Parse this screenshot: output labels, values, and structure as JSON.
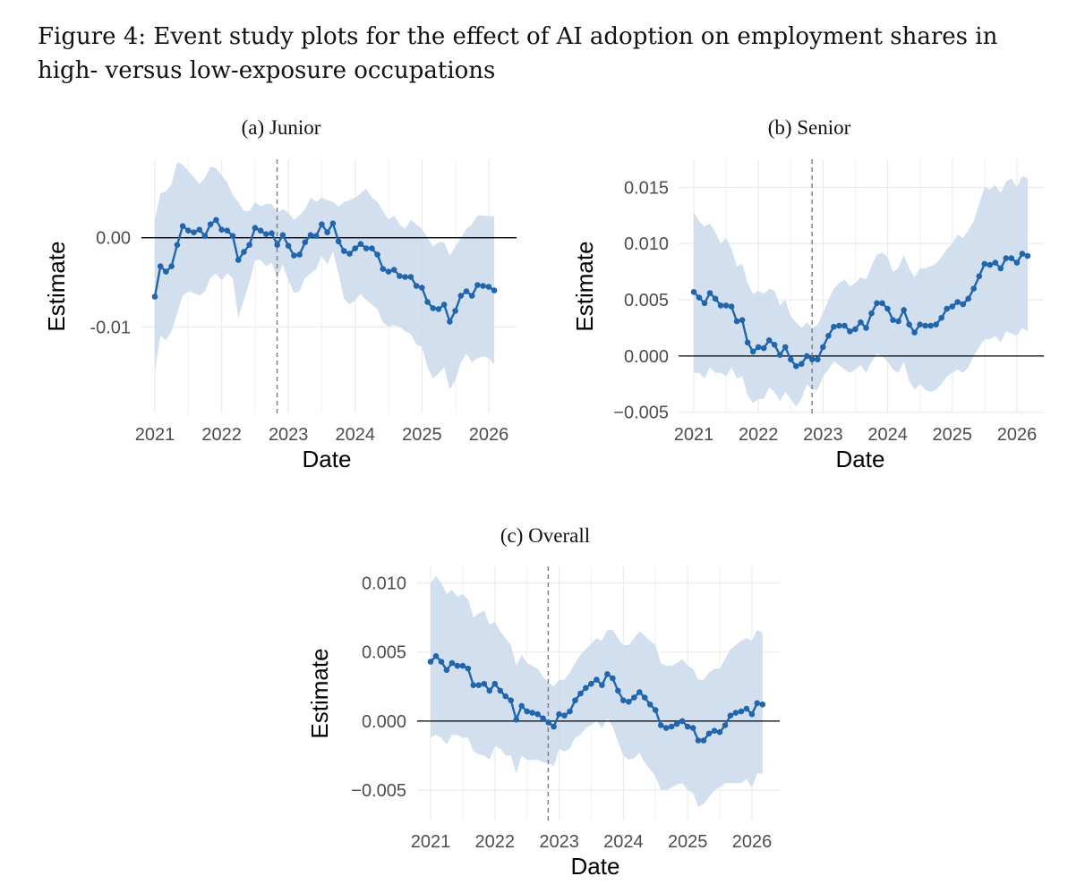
{
  "caption": "Figure 4: Event study plots for the effect of AI adoption on employment shares in high- versus low-exposure occupations",
  "colors": {
    "line": "#2166ac",
    "band": "#c9d9ec",
    "reference_line": "#808080"
  },
  "chart_data": [
    {
      "id": "junior",
      "type": "line",
      "title": "(a) Junior",
      "xlabel": "Date",
      "ylabel": "Estimate",
      "xlim": [
        2021.0,
        2026.4
      ],
      "ylim": [
        -0.0197,
        0.0088
      ],
      "xticks": [
        2021,
        2022,
        2023,
        2024,
        2025,
        2026
      ],
      "xtick_labels": [
        "2021",
        "2022",
        "2023",
        "2024",
        "2025",
        "2026"
      ],
      "yticks": [
        0.0,
        -0.01
      ],
      "ytick_labels": [
        "0.00",
        "-0.01"
      ],
      "reference_hline": 0,
      "event_date": 2022.83,
      "grid": true,
      "series": [
        {
          "x_start": 2021.0,
          "x_step": 0.0833,
          "estimate": [
            -0.0066,
            -0.0032,
            -0.0038,
            -0.0032,
            -0.0008,
            0.0013,
            0.0008,
            0.0006,
            0.0009,
            0.0002,
            0.0015,
            0.002,
            0.0009,
            0.0008,
            0.0002,
            -0.0025,
            -0.0016,
            -0.0008,
            0.0011,
            0.0008,
            0.0004,
            0.0005,
            -0.0008,
            0.0003,
            -0.0009,
            -0.002,
            -0.0019,
            -0.0005,
            0.0003,
            0.0002,
            0.0015,
            0.0006,
            0.0016,
            -0.0004,
            -0.0015,
            -0.0018,
            -0.0012,
            -0.0007,
            -0.0012,
            -0.0012,
            -0.0019,
            -0.0035,
            -0.0038,
            -0.0036,
            -0.0043,
            -0.0044,
            -0.0044,
            -0.0054,
            -0.0056,
            -0.0072,
            -0.0079,
            -0.008,
            -0.0075,
            -0.0094,
            -0.0082,
            -0.0065,
            -0.006,
            -0.0065,
            -0.0053,
            -0.0054,
            -0.0055,
            -0.0059
          ],
          "upper": [
            0.002,
            0.005,
            0.0052,
            0.006,
            0.0085,
            0.0082,
            0.0075,
            0.0068,
            0.006,
            0.0067,
            0.008,
            0.0078,
            0.007,
            0.0062,
            0.0048,
            0.004,
            0.003,
            0.003,
            0.004,
            0.0035,
            0.0038,
            0.0038,
            0.0028,
            0.0032,
            0.0028,
            0.002,
            0.0025,
            0.0032,
            0.0045,
            0.004,
            0.0045,
            0.0042,
            0.004,
            0.0035,
            0.004,
            0.0042,
            0.0045,
            0.005,
            0.0055,
            0.0045,
            0.004,
            0.003,
            0.002,
            0.0025,
            0.0015,
            0.001,
            0.002,
            0.0015,
            0.001,
            0.0,
            -0.001,
            -0.0005,
            -0.0005,
            -0.002,
            -0.001,
            0.0,
            0.001,
            0.0015,
            0.0025,
            0.0025,
            0.0024,
            0.0024
          ],
          "lower": [
            -0.015,
            -0.011,
            -0.0115,
            -0.0105,
            -0.0085,
            -0.0065,
            -0.006,
            -0.0062,
            -0.0065,
            -0.006,
            -0.0045,
            -0.004,
            -0.0048,
            -0.004,
            -0.0045,
            -0.009,
            -0.007,
            -0.005,
            -0.0025,
            -0.0025,
            -0.0032,
            -0.0028,
            -0.0045,
            -0.003,
            -0.0048,
            -0.0062,
            -0.006,
            -0.0045,
            -0.004,
            -0.0035,
            -0.002,
            -0.003,
            -0.0015,
            -0.004,
            -0.0068,
            -0.0075,
            -0.007,
            -0.0063,
            -0.007,
            -0.0075,
            -0.008,
            -0.0095,
            -0.01,
            -0.0098,
            -0.01,
            -0.0105,
            -0.0108,
            -0.012,
            -0.0122,
            -0.0145,
            -0.0158,
            -0.0152,
            -0.0145,
            -0.017,
            -0.016,
            -0.014,
            -0.013,
            -0.014,
            -0.0135,
            -0.0133,
            -0.0135,
            -0.0142
          ]
        }
      ]
    },
    {
      "id": "senior",
      "type": "line",
      "title": "(b) Senior",
      "xlabel": "Date",
      "ylabel": "Estimate",
      "xlim": [
        2021.0,
        2026.4
      ],
      "ylim": [
        -0.0051,
        0.0175
      ],
      "xticks": [
        2021,
        2022,
        2023,
        2024,
        2025,
        2026
      ],
      "xtick_labels": [
        "2021",
        "2022",
        "2023",
        "2024",
        "2025",
        "2026"
      ],
      "yticks": [
        0.015,
        0.01,
        0.005,
        0.0,
        -0.005
      ],
      "ytick_labels": [
        "0.015",
        "0.010",
        "0.005",
        "0.000",
        "−0.005"
      ],
      "reference_hline": 0,
      "event_date": 2022.83,
      "grid": true,
      "series": [
        {
          "x_start": 2021.0,
          "x_step": 0.0833,
          "estimate": [
            0.0057,
            0.0052,
            0.0047,
            0.0056,
            0.0051,
            0.0045,
            0.0045,
            0.0044,
            0.0031,
            0.0032,
            0.0012,
            0.0004,
            0.0008,
            0.0007,
            0.0014,
            0.001,
            0.0001,
            0.0008,
            -0.0003,
            -0.0009,
            -0.0007,
            0.0,
            -0.0003,
            -0.0003,
            0.0008,
            0.0018,
            0.0026,
            0.0027,
            0.0027,
            0.0022,
            0.0024,
            0.003,
            0.0025,
            0.0038,
            0.0047,
            0.0047,
            0.0042,
            0.0032,
            0.0031,
            0.0041,
            0.0028,
            0.0021,
            0.0028,
            0.0027,
            0.0027,
            0.0028,
            0.0034,
            0.0042,
            0.0044,
            0.0048,
            0.0046,
            0.0051,
            0.006,
            0.0071,
            0.0082,
            0.0081,
            0.0083,
            0.0078,
            0.0087,
            0.0087,
            0.0083,
            0.0091,
            0.0089
          ],
          "upper": [
            0.0128,
            0.012,
            0.0115,
            0.0118,
            0.011,
            0.01,
            0.0105,
            0.0095,
            0.008,
            0.0082,
            0.0065,
            0.0055,
            0.0058,
            0.0055,
            0.006,
            0.0058,
            0.0045,
            0.005,
            0.0035,
            0.003,
            0.0025,
            0.003,
            0.0025,
            0.0028,
            0.0038,
            0.005,
            0.006,
            0.0065,
            0.0068,
            0.0062,
            0.0065,
            0.007,
            0.0068,
            0.008,
            0.009,
            0.0092,
            0.0088,
            0.0075,
            0.0078,
            0.009,
            0.0078,
            0.007,
            0.0078,
            0.0078,
            0.008,
            0.0082,
            0.0088,
            0.0095,
            0.01,
            0.0108,
            0.0105,
            0.0112,
            0.012,
            0.0135,
            0.015,
            0.0148,
            0.0152,
            0.0145,
            0.0155,
            0.0158,
            0.015,
            0.016,
            0.0158
          ],
          "lower": [
            -0.0015,
            -0.0015,
            -0.002,
            -0.001,
            -0.0015,
            -0.0015,
            -0.0018,
            -0.001,
            -0.002,
            -0.0018,
            -0.0035,
            -0.0042,
            -0.0038,
            -0.0038,
            -0.0028,
            -0.0032,
            -0.004,
            -0.0032,
            -0.0038,
            -0.0045,
            -0.0038,
            -0.0025,
            -0.003,
            -0.003,
            -0.0018,
            -0.0012,
            -0.0005,
            -0.0008,
            -0.0012,
            -0.0015,
            -0.0012,
            -0.0008,
            -0.0015,
            -0.0005,
            0.0002,
            0.0,
            -0.0005,
            -0.0012,
            -0.0015,
            -0.0005,
            -0.0022,
            -0.003,
            -0.0025,
            -0.003,
            -0.0032,
            -0.003,
            -0.0025,
            -0.0018,
            -0.0015,
            -0.0012,
            -0.0015,
            -0.001,
            0.0,
            0.0008,
            0.0015,
            0.0015,
            0.0018,
            0.0012,
            0.0022,
            0.002,
            0.0018,
            0.0025,
            0.0022
          ]
        }
      ]
    },
    {
      "id": "overall",
      "type": "line",
      "title": "(c) Overall",
      "xlabel": "Date",
      "ylabel": "Estimate",
      "xlim": [
        2021.0,
        2026.4
      ],
      "ylim": [
        -0.0072,
        0.0112
      ],
      "xticks": [
        2021,
        2022,
        2023,
        2024,
        2025,
        2026
      ],
      "xtick_labels": [
        "2021",
        "2022",
        "2023",
        "2024",
        "2025",
        "2026"
      ],
      "yticks": [
        0.01,
        0.005,
        0.0,
        -0.005
      ],
      "ytick_labels": [
        "0.010",
        "0.005",
        "0.000",
        "−0.005"
      ],
      "reference_hline": 0,
      "event_date": 2022.83,
      "grid": true,
      "series": [
        {
          "x_start": 2021.0,
          "x_step": 0.0833,
          "estimate": [
            0.0043,
            0.0047,
            0.0043,
            0.0037,
            0.0042,
            0.004,
            0.004,
            0.0038,
            0.0026,
            0.0026,
            0.0027,
            0.0022,
            0.0027,
            0.0022,
            0.0018,
            0.0015,
            0.0001,
            0.0011,
            0.0007,
            0.0006,
            0.0005,
            0.0002,
            -0.0001,
            -0.0004,
            0.0005,
            0.0004,
            0.0007,
            0.0015,
            0.002,
            0.0024,
            0.0027,
            0.003,
            0.0026,
            0.0034,
            0.0031,
            0.0022,
            0.0015,
            0.0014,
            0.0017,
            0.0021,
            0.0017,
            0.0012,
            0.0008,
            -0.0003,
            -0.0005,
            -0.0004,
            -0.0002,
            0.0,
            -0.0004,
            -0.0005,
            -0.0014,
            -0.0014,
            -0.0009,
            -0.0007,
            -0.0008,
            -0.0003,
            0.0004,
            0.0006,
            0.0007,
            0.0009,
            0.0005,
            0.0013,
            0.0012
          ],
          "upper": [
            0.01,
            0.0105,
            0.01,
            0.0092,
            0.0095,
            0.009,
            0.0092,
            0.0088,
            0.0075,
            0.0078,
            0.008,
            0.007,
            0.0072,
            0.0065,
            0.006,
            0.0055,
            0.004,
            0.0048,
            0.0042,
            0.004,
            0.0038,
            0.0032,
            0.0028,
            0.0025,
            0.003,
            0.003,
            0.0035,
            0.0042,
            0.0048,
            0.0052,
            0.0056,
            0.006,
            0.0058,
            0.0066,
            0.0066,
            0.006,
            0.0055,
            0.0055,
            0.006,
            0.0065,
            0.0062,
            0.0058,
            0.0055,
            0.0042,
            0.004,
            0.004,
            0.0042,
            0.0045,
            0.004,
            0.0038,
            0.003,
            0.003,
            0.0035,
            0.0038,
            0.0038,
            0.0045,
            0.0052,
            0.0055,
            0.0058,
            0.006,
            0.0058,
            0.0066,
            0.0064
          ],
          "lower": [
            -0.0012,
            -0.001,
            -0.0012,
            -0.0017,
            -0.001,
            -0.001,
            -0.0012,
            -0.0012,
            -0.0022,
            -0.0024,
            -0.0025,
            -0.0028,
            -0.0018,
            -0.002,
            -0.0025,
            -0.0025,
            -0.0038,
            -0.0025,
            -0.0028,
            -0.0028,
            -0.0028,
            -0.003,
            -0.003,
            -0.0033,
            -0.002,
            -0.0022,
            -0.002,
            -0.0012,
            -0.001,
            -0.0005,
            -0.0003,
            0.0,
            -0.0005,
            0.0002,
            -0.0004,
            -0.0015,
            -0.0025,
            -0.0028,
            -0.0027,
            -0.0023,
            -0.003,
            -0.0035,
            -0.004,
            -0.005,
            -0.005,
            -0.0048,
            -0.0046,
            -0.0045,
            -0.005,
            -0.0052,
            -0.0062,
            -0.006,
            -0.0055,
            -0.005,
            -0.0048,
            -0.0045,
            -0.0045,
            -0.0045,
            -0.0045,
            -0.0042,
            -0.0048,
            -0.0038,
            -0.0038
          ]
        }
      ]
    }
  ]
}
